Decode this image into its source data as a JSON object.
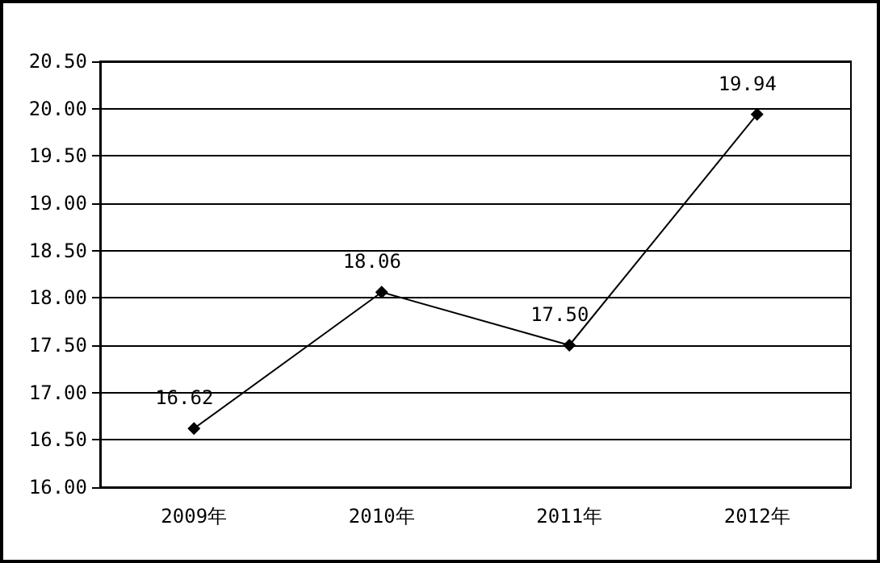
{
  "chart_data": {
    "type": "line",
    "categories": [
      "2009年",
      "2010年",
      "2011年",
      "2012年"
    ],
    "series": [
      {
        "color": "#000000",
        "values": [
          16.62,
          18.06,
          17.5,
          19.94
        ],
        "value_labels": [
          "16.62",
          "18.06",
          "17.50",
          "19.94"
        ]
      }
    ],
    "ylim": [
      16,
      20.5
    ],
    "yticks": [
      {
        "value": 16,
        "label": "16.00"
      },
      {
        "value": 16.5,
        "label": "16.50"
      },
      {
        "value": 17,
        "label": "17.00"
      },
      {
        "value": 17.5,
        "label": "17.50"
      },
      {
        "value": 18,
        "label": "18.00"
      },
      {
        "value": 18.5,
        "label": "18.50"
      },
      {
        "value": 19,
        "label": "19.00"
      },
      {
        "value": 19.5,
        "label": "19.50"
      },
      {
        "value": 20,
        "label": "20.00"
      },
      {
        "value": 20.5,
        "label": "20.50"
      }
    ],
    "grid": "y",
    "marker": "diamond",
    "line_style": "solid"
  }
}
